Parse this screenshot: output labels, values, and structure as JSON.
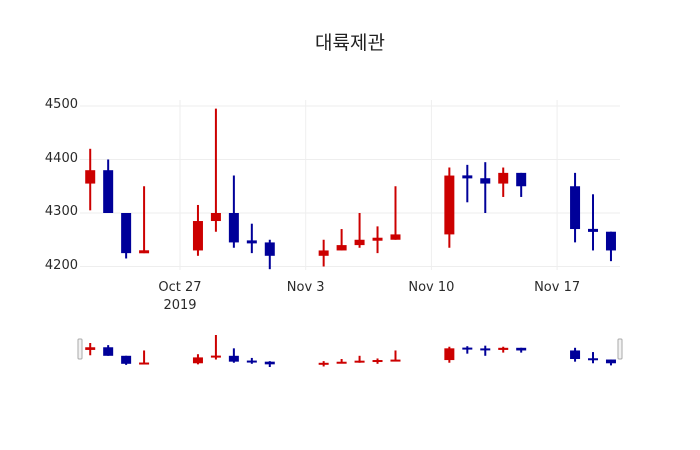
{
  "title": "대륙제관",
  "colors": {
    "increasing": "#cc0000",
    "decreasing": "#000099",
    "grid": "#eeeeee",
    "handle_stroke": "#aaaaaa"
  },
  "chart_data": {
    "type": "candlestick",
    "title": "대륙제관",
    "xlabel": "",
    "ylabel": "",
    "ylim": [
      4183,
      4517
    ],
    "y_ticks": [
      4200,
      4300,
      4400,
      4500
    ],
    "x_ticks": [
      {
        "date": "2019-10-27",
        "label": "Oct 27",
        "sublabel": "2019"
      },
      {
        "date": "2019-11-03",
        "label": "Nov 3",
        "sublabel": ""
      },
      {
        "date": "2019-11-10",
        "label": "Nov 10",
        "sublabel": ""
      },
      {
        "date": "2019-11-17",
        "label": "Nov 17",
        "sublabel": ""
      }
    ],
    "grid": true,
    "rangeslider": true,
    "candles": [
      {
        "date": "2019-10-22",
        "open": 4355,
        "high": 4420,
        "low": 4305,
        "close": 4380
      },
      {
        "date": "2019-10-23",
        "open": 4380,
        "high": 4400,
        "low": 4300,
        "close": 4300
      },
      {
        "date": "2019-10-24",
        "open": 4300,
        "high": 4300,
        "low": 4215,
        "close": 4225
      },
      {
        "date": "2019-10-25",
        "open": 4225,
        "high": 4350,
        "low": 4225,
        "close": 4230
      },
      {
        "date": "2019-10-28",
        "open": 4230,
        "high": 4315,
        "low": 4220,
        "close": 4285
      },
      {
        "date": "2019-10-29",
        "open": 4285,
        "high": 4495,
        "low": 4265,
        "close": 4300
      },
      {
        "date": "2019-10-30",
        "open": 4300,
        "high": 4370,
        "low": 4235,
        "close": 4245
      },
      {
        "date": "2019-10-31",
        "open": 4247,
        "high": 4280,
        "low": 4225,
        "close": 4245
      },
      {
        "date": "2019-11-01",
        "open": 4245,
        "high": 4250,
        "low": 4195,
        "close": 4220
      },
      {
        "date": "2019-11-04",
        "open": 4220,
        "high": 4250,
        "low": 4200,
        "close": 4230
      },
      {
        "date": "2019-11-05",
        "open": 4230,
        "high": 4270,
        "low": 4230,
        "close": 4240
      },
      {
        "date": "2019-11-06",
        "open": 4240,
        "high": 4300,
        "low": 4235,
        "close": 4250
      },
      {
        "date": "2019-11-07",
        "open": 4250,
        "high": 4275,
        "low": 4225,
        "close": 4252
      },
      {
        "date": "2019-11-08",
        "open": 4250,
        "high": 4350,
        "low": 4250,
        "close": 4260
      },
      {
        "date": "2019-11-11",
        "open": 4260,
        "high": 4385,
        "low": 4235,
        "close": 4370
      },
      {
        "date": "2019-11-12",
        "open": 4370,
        "high": 4390,
        "low": 4320,
        "close": 4365
      },
      {
        "date": "2019-11-13",
        "open": 4365,
        "high": 4395,
        "low": 4300,
        "close": 4355
      },
      {
        "date": "2019-11-14",
        "open": 4355,
        "high": 4385,
        "low": 4330,
        "close": 4375
      },
      {
        "date": "2019-11-15",
        "open": 4375,
        "high": 4375,
        "low": 4330,
        "close": 4350
      },
      {
        "date": "2019-11-18",
        "open": 4350,
        "high": 4375,
        "low": 4245,
        "close": 4270
      },
      {
        "date": "2019-11-19",
        "open": 4270,
        "high": 4335,
        "low": 4230,
        "close": 4265
      },
      {
        "date": "2019-11-20",
        "open": 4265,
        "high": 4265,
        "low": 4210,
        "close": 4230
      }
    ]
  }
}
